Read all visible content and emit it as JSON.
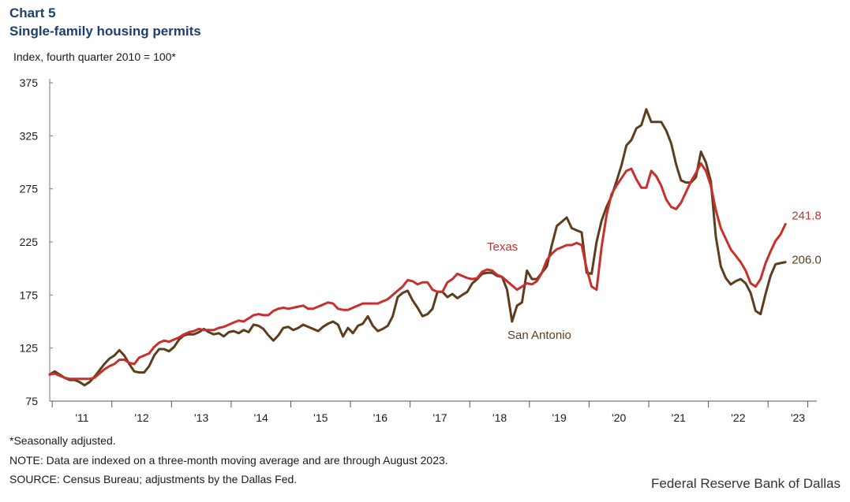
{
  "header": {
    "chart_number": "Chart 5",
    "title": "Single-family  housing  permits",
    "y_axis_label": "Index,  fourth  quarter  2010  =  100*"
  },
  "footer": {
    "note_1": "*Seasonally adjusted.",
    "note_2": "NOTE: Data are indexed on a three-month  moving average and are through August 2023.",
    "note_3": "SOURCE: Census Bureau; adjustments by the Dallas Fed.",
    "credit": "Federal Reserve Bank of Dallas"
  },
  "chart_data": {
    "type": "line",
    "title": "Single-family housing permits",
    "ylabel": "Index, fourth quarter 2010 = 100*",
    "xlabel": "",
    "ylim": [
      75,
      375
    ],
    "yticks": [
      75,
      125,
      175,
      225,
      275,
      325,
      375
    ],
    "x_start": "2010-12",
    "x_end": "2023-08",
    "year_labels": [
      {
        "year": 2011,
        "label": "'11"
      },
      {
        "year": 2012,
        "label": "'12"
      },
      {
        "year": 2013,
        "label": "'13"
      },
      {
        "year": 2014,
        "label": "'14"
      },
      {
        "year": 2015,
        "label": "'15"
      },
      {
        "year": 2016,
        "label": "'16"
      },
      {
        "year": 2017,
        "label": "'17"
      },
      {
        "year": 2018,
        "label": "'18"
      },
      {
        "year": 2019,
        "label": "'19"
      },
      {
        "year": 2020,
        "label": "'20"
      },
      {
        "year": 2021,
        "label": "'21"
      },
      {
        "year": 2022,
        "label": "'22"
      },
      {
        "year": 2023,
        "label": "'23"
      }
    ],
    "series": [
      {
        "name": "Texas",
        "label": "Texas",
        "color": "#c8302e",
        "end_label": "241.8",
        "values": [
          100,
          101,
          99,
          97,
          96,
          96,
          96,
          96,
          96,
          97,
          101,
          105,
          108,
          110,
          114,
          114,
          111,
          110,
          116,
          118,
          120,
          126,
          130,
          132,
          131,
          133,
          135,
          138,
          140,
          141,
          143,
          142,
          142,
          142,
          144,
          145,
          147,
          149,
          151,
          150,
          153,
          156,
          157,
          156,
          156,
          160,
          162,
          163,
          162,
          163,
          164,
          165,
          162,
          162,
          164,
          166,
          168,
          167,
          162,
          161,
          161,
          163,
          165,
          167,
          167,
          167,
          167,
          169,
          171,
          175,
          179,
          183,
          189,
          188,
          185,
          187,
          187,
          180,
          178,
          178,
          187,
          190,
          195,
          193,
          191,
          190,
          191,
          197,
          199,
          198,
          194,
          192,
          188,
          184,
          180,
          183,
          186,
          185,
          188,
          196,
          208,
          214,
          218,
          220,
          222,
          222,
          224,
          222,
          200,
          183,
          180,
          220,
          250,
          270,
          278,
          285,
          292,
          294,
          284,
          276,
          276,
          292,
          287,
          278,
          265,
          258,
          256,
          262,
          272,
          282,
          290,
          299,
          292,
          278,
          255,
          238,
          228,
          218,
          212,
          206,
          198,
          186,
          183,
          190,
          205,
          216,
          226,
          232,
          241.8
        ]
      },
      {
        "name": "San Antonio",
        "label": "San Antonio",
        "color": "#5c3d1e",
        "end_label": "206.0",
        "values": [
          100,
          103,
          100,
          97,
          95,
          95,
          93,
          90,
          93,
          98,
          104,
          110,
          115,
          118,
          123,
          118,
          110,
          103,
          102,
          102,
          108,
          118,
          124,
          124,
          122,
          126,
          133,
          137,
          138,
          138,
          140,
          143,
          140,
          138,
          139,
          136,
          140,
          141,
          139,
          142,
          140,
          147,
          146,
          143,
          137,
          132,
          137,
          144,
          145,
          142,
          144,
          147,
          145,
          143,
          141,
          145,
          148,
          150,
          147,
          136,
          144,
          139,
          146,
          148,
          155,
          146,
          141,
          143,
          146,
          155,
          173,
          177,
          179,
          170,
          163,
          155,
          157,
          162,
          178,
          178,
          173,
          176,
          172,
          175,
          178,
          186,
          190,
          195,
          196,
          196,
          193,
          192,
          180,
          150,
          165,
          168,
          198,
          190,
          190,
          196,
          202,
          222,
          240,
          244,
          248,
          238,
          236,
          234,
          196,
          195,
          225,
          245,
          258,
          268,
          282,
          297,
          316,
          321,
          332,
          335,
          350,
          338,
          338,
          338,
          330,
          318,
          298,
          283,
          281,
          281,
          286,
          310,
          300,
          282,
          230,
          202,
          191,
          185,
          188,
          190,
          186,
          177,
          160,
          157,
          176,
          193,
          204,
          205,
          206.0
        ]
      }
    ],
    "annotations": [
      {
        "text": "Texas",
        "series": "Texas"
      },
      {
        "text": "San Antonio",
        "series": "San Antonio"
      }
    ]
  }
}
